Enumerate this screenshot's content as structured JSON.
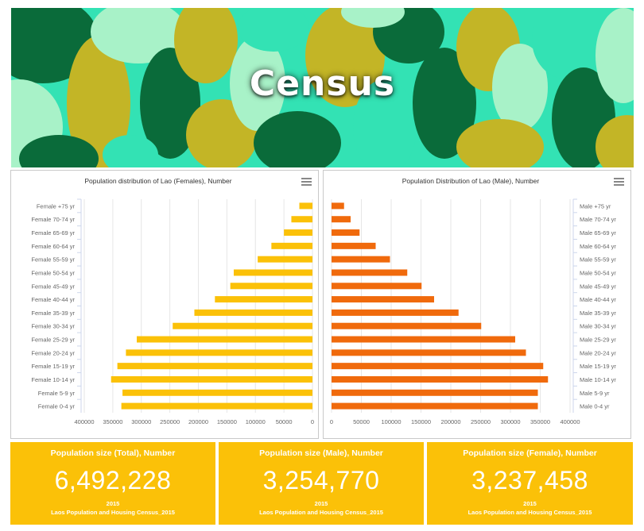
{
  "hero": {
    "title": "Census"
  },
  "colors": {
    "female": "#fbc108",
    "male": "#f06a0c",
    "kpi_bg": "#fbc108",
    "grid": "#e6e6e6"
  },
  "chart_data": [
    {
      "type": "bar",
      "orientation": "horizontal",
      "title": "Population distribution of Lao (Females), Number",
      "categories": [
        "Female +75 yr",
        "Female 70-74 yr",
        "Female 65-69 yr",
        "Female 60-64 yr",
        "Female 55-59 yr",
        "Female 50-54 yr",
        "Female 45-49 yr",
        "Female 40-44 yr",
        "Female 35-39 yr",
        "Female 30-34 yr",
        "Female 25-29 yr",
        "Female 20-24 yr",
        "Female 15-19 yr",
        "Female 10-14 yr",
        "Female 5-9 yr",
        "Female 0-4 yr"
      ],
      "values": [
        23000,
        37000,
        50000,
        72000,
        96000,
        138000,
        144000,
        171000,
        207000,
        245000,
        308000,
        327000,
        342000,
        353000,
        333000,
        335000
      ],
      "xlim": [
        0,
        400000
      ],
      "reversed": true,
      "ticks": [
        "400000",
        "350000",
        "300000",
        "250000",
        "200000",
        "150000",
        "100000",
        "50000",
        "0"
      ],
      "color": "#fbc108",
      "label_side": "left"
    },
    {
      "type": "bar",
      "orientation": "horizontal",
      "title": "Population Distribution of Lao (Male), Number",
      "categories": [
        "Male +75 yr",
        "Male 70-74 yr",
        "Male 65-69 yr",
        "Male 60-64 yr",
        "Male 55-59 yr",
        "Male 50-54 yr",
        "Male 45-49 yr",
        "Male 40-44 yr",
        "Male 35-39 yr",
        "Male 30-34 yr",
        "Male 25-29 yr",
        "Male 20-24 yr",
        "Male 15-19 yr",
        "Male 10-14 yr",
        "Male 5-9 yr",
        "Male 0-4 yr"
      ],
      "values": [
        21000,
        32000,
        47000,
        74000,
        98000,
        127000,
        151000,
        172000,
        213000,
        251000,
        308000,
        326000,
        355000,
        363000,
        346000,
        346000
      ],
      "xlim": [
        0,
        400000
      ],
      "reversed": false,
      "ticks": [
        "0",
        "50000",
        "100000",
        "150000",
        "200000",
        "250000",
        "300000",
        "350000",
        "400000"
      ],
      "color": "#f06a0c",
      "label_side": "right"
    }
  ],
  "kpis": [
    {
      "title": "Population size (Total), Number",
      "value": "6,492,228",
      "year": "2015",
      "source": "Laos Population and Housing Census_2015"
    },
    {
      "title": "Population size (Male), Number",
      "value": "3,254,770",
      "year": "2015",
      "source": "Laos Population and Housing Census_2015"
    },
    {
      "title": "Population size (Female), Number",
      "value": "3,237,458",
      "year": "2015",
      "source": "Laos Population and Housing Census_2015"
    }
  ]
}
